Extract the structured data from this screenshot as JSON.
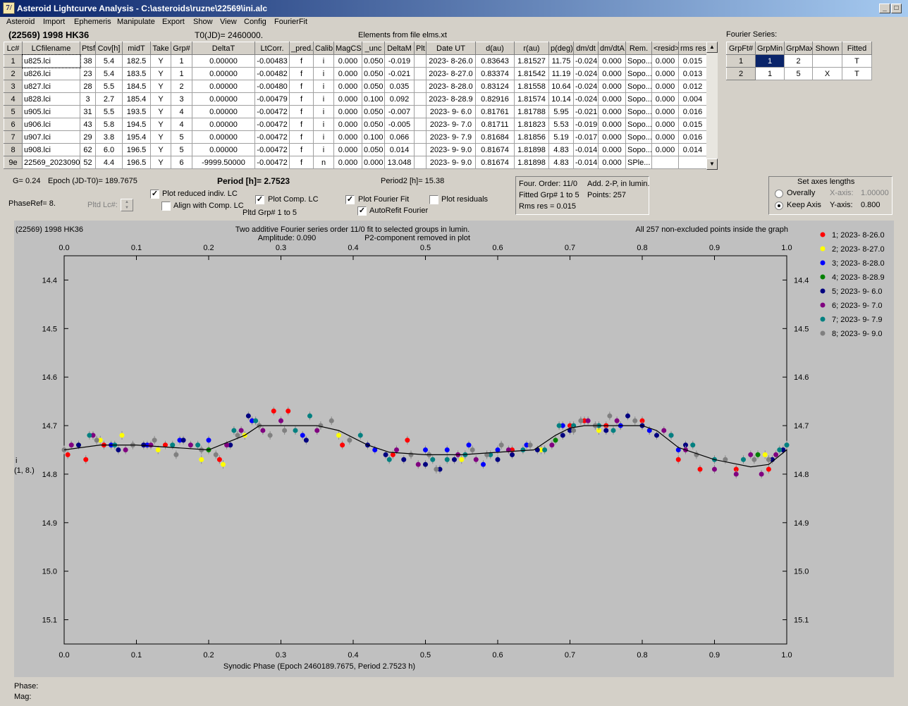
{
  "window": {
    "title": "Asteroid Lightcurve Analysis - C:\\asteroids\\ruzne\\22569\\ini.alc",
    "icon_name": "app-icon",
    "icon_glyph": "7/",
    "minimize": "_",
    "restore": "□",
    "close": "✕"
  },
  "menu": [
    "Asteroid",
    "Import",
    "Ephemeris",
    "Manipulate",
    "Export",
    "Show",
    "View",
    "Config",
    "FourierFit"
  ],
  "header": {
    "asteroid_name": "(22569) 1998 HK36",
    "t0": "T0(JD)= 2460000.",
    "elements": "Elements from file elms.xt"
  },
  "lc_table": {
    "columns": [
      "Lc#",
      "LCfilename",
      "Ptsf",
      "Cov[h]",
      "midT",
      "Take",
      "Grp#",
      "DeltaT",
      "LtCorr.",
      "_pred.",
      "Calib.",
      "MagCS",
      "_unc",
      "DeltaM",
      "Plt",
      "Date UT",
      "d(au)",
      "r(au)",
      "p(deg)",
      "dm/dt",
      "dm/dtA",
      "Rem.",
      "<resid>",
      "rms res"
    ],
    "rows": [
      [
        "1",
        "u825.lci",
        "38",
        "5.4",
        "182.5",
        "Y",
        "1",
        "0.00000",
        "-0.00483",
        "f",
        "i",
        "0.000",
        "0.050",
        "-0.019",
        "",
        "2023- 8-26.0",
        "0.83643",
        "1.81527",
        "11.75",
        "-0.024",
        "0.000",
        "Sopo...",
        "0.000",
        "0.015"
      ],
      [
        "2",
        "u826.lci",
        "23",
        "5.4",
        "183.5",
        "Y",
        "1",
        "0.00000",
        "-0.00482",
        "f",
        "i",
        "0.000",
        "0.050",
        "-0.021",
        "",
        "2023- 8-27.0",
        "0.83374",
        "1.81542",
        "11.19",
        "-0.024",
        "0.000",
        "Sopo...",
        "0.000",
        "0.013"
      ],
      [
        "3",
        "u827.lci",
        "28",
        "5.5",
        "184.5",
        "Y",
        "2",
        "0.00000",
        "-0.00480",
        "f",
        "i",
        "0.000",
        "0.050",
        "0.035",
        "",
        "2023- 8-28.0",
        "0.83124",
        "1.81558",
        "10.64",
        "-0.024",
        "0.000",
        "Sopo...",
        "0.000",
        "0.012"
      ],
      [
        "4",
        "u828.lci",
        "3",
        "2.7",
        "185.4",
        "Y",
        "3",
        "0.00000",
        "-0.00479",
        "f",
        "i",
        "0.000",
        "0.100",
        "0.092",
        "",
        "2023- 8-28.9",
        "0.82916",
        "1.81574",
        "10.14",
        "-0.024",
        "0.000",
        "Sopo...",
        "0.000",
        "0.004"
      ],
      [
        "5",
        "u905.lci",
        "31",
        "5.5",
        "193.5",
        "Y",
        "4",
        "0.00000",
        "-0.00472",
        "f",
        "i",
        "0.000",
        "0.050",
        "-0.007",
        "",
        "2023- 9- 6.0",
        "0.81761",
        "1.81788",
        "5.95",
        "-0.021",
        "0.000",
        "Sopo...",
        "0.000",
        "0.016"
      ],
      [
        "6",
        "u906.lci",
        "43",
        "5.8",
        "194.5",
        "Y",
        "4",
        "0.00000",
        "-0.00472",
        "f",
        "i",
        "0.000",
        "0.050",
        "-0.005",
        "",
        "2023- 9- 7.0",
        "0.81711",
        "1.81823",
        "5.53",
        "-0.019",
        "0.000",
        "Sopo...",
        "0.000",
        "0.015"
      ],
      [
        "7",
        "u907.lci",
        "29",
        "3.8",
        "195.4",
        "Y",
        "5",
        "0.00000",
        "-0.00472",
        "f",
        "i",
        "0.000",
        "0.100",
        "0.066",
        "",
        "2023- 9- 7.9",
        "0.81684",
        "1.81856",
        "5.19",
        "-0.017",
        "0.000",
        "Sopo...",
        "0.000",
        "0.016"
      ],
      [
        "8",
        "u908.lci",
        "62",
        "6.0",
        "196.5",
        "Y",
        "5",
        "0.00000",
        "-0.00472",
        "f",
        "i",
        "0.000",
        "0.050",
        "0.014",
        "",
        "2023- 9- 9.0",
        "0.81674",
        "1.81898",
        "4.83",
        "-0.014",
        "0.000",
        "Sopo...",
        "0.000",
        "0.014"
      ],
      [
        "9e",
        "22569_2023090",
        "52",
        "4.4",
        "196.5",
        "Y",
        "6",
        "-9999.50000",
        "-0.00472",
        "f",
        "n",
        "0.000",
        "0.000",
        "13.048",
        "",
        "2023- 9- 9.0",
        "0.81674",
        "1.81898",
        "4.83",
        "-0.014",
        "0.000",
        "SPle...",
        "",
        ""
      ]
    ]
  },
  "fourier_table": {
    "title": "Fourier Series:",
    "columns": [
      "GrpFt#",
      "GrpMin",
      "GrpMax",
      "Shown",
      "Fitted"
    ],
    "rows": [
      [
        "1",
        "1",
        "2",
        "",
        "T"
      ],
      [
        "2",
        "1",
        "5",
        "X",
        "T"
      ]
    ]
  },
  "controls": {
    "g": "G= 0.24",
    "epoch": "Epoch (JD-T0)= 189.7675",
    "period": "Period [h]= 2.7523",
    "period2": "Period2 [h]= 15.38",
    "phaseref": "PhaseRef= 8.",
    "pltd_lc": "Pltd Lc#:",
    "plot_reduced": "Plot reduced indiv. LC",
    "align_comp": "Align with Comp. LC",
    "plot_comp": "Plot Comp. LC",
    "pltd_grp": "Pltd Grp#  1   to   5",
    "plot_fourier": "Plot Fourier Fit",
    "autorefit": "AutoRefit Fourier",
    "plot_residuals": "Plot residuals",
    "checked": "✓",
    "checks": {
      "plot_reduced": true,
      "align_comp": false,
      "plot_comp": true,
      "plot_fourier": true,
      "autorefit": true,
      "plot_residuals": false
    }
  },
  "fit_info": {
    "order": "Four. Order: 11/0",
    "add": "Add. 2-P, in lumin.",
    "fitted": "Fitted Grp# 1 to 5",
    "points": "Points: 257",
    "rms": "Rms res     = 0.015"
  },
  "axes_panel": {
    "title": "Set axes lengths",
    "overally": "Overally",
    "keep_axis": "Keep Axis",
    "x_label": "X-axis:",
    "x_value": "1.00000",
    "y_label": "Y-axis:",
    "y_value": "0.800",
    "selected": "keep_axis"
  },
  "plot": {
    "name": "(22569) 1998 HK36",
    "line1": "Two additive Fourier series order 11/0 fit to selected groups in lumin.",
    "line2": "Amplitude: 0.090",
    "line3": "P2-component removed in plot",
    "right_note": "All 257 non-excluded points inside the graph",
    "ylabel_1": "i",
    "ylabel_2": "(1, 8.)",
    "xlabel": "Synodic Phase (Epoch 2460189.7675, Period 2.7523 h)"
  },
  "status": {
    "phase": "Phase:",
    "mag": "Mag:"
  },
  "chart_data": {
    "type": "scatter",
    "xlim": [
      0,
      1
    ],
    "ylim": [
      15.15,
      14.35
    ],
    "y_inverted": true,
    "x_ticks": [
      "0.0",
      "0.1",
      "0.2",
      "0.3",
      "0.4",
      "0.5",
      "0.6",
      "0.7",
      "0.8",
      "0.9",
      "1.0"
    ],
    "y_ticks": [
      "14.4",
      "14.5",
      "14.6",
      "14.7",
      "14.8",
      "14.9",
      "15.0",
      "15.1"
    ],
    "x_tick_values": [
      0,
      0.1,
      0.2,
      0.3,
      0.4,
      0.5,
      0.6,
      0.7,
      0.8,
      0.9,
      1.0
    ],
    "y_tick_values": [
      14.4,
      14.5,
      14.6,
      14.7,
      14.8,
      14.9,
      15.0,
      15.1
    ],
    "legend_position": "right",
    "series": [
      {
        "name": "1; 2023- 8-26.0",
        "color": "#ff0000",
        "points": [
          [
            0.005,
            14.76
          ],
          [
            0.03,
            14.77
          ],
          [
            0.055,
            14.74
          ],
          [
            0.14,
            14.74
          ],
          [
            0.215,
            14.77
          ],
          [
            0.26,
            14.69
          ],
          [
            0.29,
            14.67
          ],
          [
            0.31,
            14.67
          ],
          [
            0.385,
            14.74
          ],
          [
            0.455,
            14.76
          ],
          [
            0.475,
            14.73
          ],
          [
            0.62,
            14.75
          ],
          [
            0.7,
            14.7
          ],
          [
            0.72,
            14.69
          ],
          [
            0.75,
            14.7
          ],
          [
            0.8,
            14.69
          ],
          [
            0.85,
            14.77
          ],
          [
            0.88,
            14.79
          ],
          [
            0.93,
            14.79
          ],
          [
            0.975,
            14.79
          ]
        ]
      },
      {
        "name": "2; 2023- 8-27.0",
        "color": "#ffff00",
        "points": [
          [
            0.02,
            14.74
          ],
          [
            0.05,
            14.73
          ],
          [
            0.08,
            14.72
          ],
          [
            0.13,
            14.75
          ],
          [
            0.19,
            14.77
          ],
          [
            0.22,
            14.78
          ],
          [
            0.25,
            14.72
          ],
          [
            0.38,
            14.72
          ],
          [
            0.55,
            14.77
          ],
          [
            0.66,
            14.75
          ],
          [
            0.74,
            14.71
          ],
          [
            0.77,
            14.7
          ],
          [
            0.81,
            14.71
          ],
          [
            0.97,
            14.76
          ]
        ]
      },
      {
        "name": "3; 2023- 8-28.0",
        "color": "#0000ff",
        "points": [
          [
            0.065,
            14.74
          ],
          [
            0.115,
            14.74
          ],
          [
            0.16,
            14.73
          ],
          [
            0.2,
            14.73
          ],
          [
            0.26,
            14.69
          ],
          [
            0.33,
            14.72
          ],
          [
            0.43,
            14.75
          ],
          [
            0.5,
            14.75
          ],
          [
            0.53,
            14.75
          ],
          [
            0.56,
            14.74
          ],
          [
            0.58,
            14.78
          ],
          [
            0.6,
            14.75
          ],
          [
            0.64,
            14.74
          ],
          [
            0.69,
            14.7
          ],
          [
            0.77,
            14.7
          ],
          [
            0.81,
            14.71
          ],
          [
            0.85,
            14.75
          ]
        ]
      },
      {
        "name": "4; 2023- 8-28.9",
        "color": "#008000",
        "points": [
          [
            0.2,
            14.75
          ],
          [
            0.68,
            14.73
          ],
          [
            0.96,
            14.76
          ]
        ]
      },
      {
        "name": "5; 2023- 9- 6.0",
        "color": "#000080",
        "points": [
          [
            0.02,
            14.74
          ],
          [
            0.075,
            14.75
          ],
          [
            0.11,
            14.74
          ],
          [
            0.165,
            14.73
          ],
          [
            0.23,
            14.74
          ],
          [
            0.255,
            14.68
          ],
          [
            0.335,
            14.73
          ],
          [
            0.42,
            14.74
          ],
          [
            0.445,
            14.76
          ],
          [
            0.47,
            14.77
          ],
          [
            0.5,
            14.78
          ],
          [
            0.52,
            14.79
          ],
          [
            0.54,
            14.77
          ],
          [
            0.6,
            14.77
          ],
          [
            0.62,
            14.76
          ],
          [
            0.655,
            14.75
          ],
          [
            0.69,
            14.72
          ],
          [
            0.7,
            14.71
          ],
          [
            0.75,
            14.71
          ],
          [
            0.78,
            14.68
          ],
          [
            0.8,
            14.7
          ],
          [
            0.82,
            14.72
          ],
          [
            0.84,
            14.72
          ],
          [
            0.86,
            14.74
          ],
          [
            0.98,
            14.77
          ],
          [
            0.995,
            14.75
          ]
        ]
      },
      {
        "name": "6; 2023- 9- 7.0",
        "color": "#800080",
        "points": [
          [
            0.01,
            14.74
          ],
          [
            0.04,
            14.72
          ],
          [
            0.085,
            14.75
          ],
          [
            0.12,
            14.74
          ],
          [
            0.175,
            14.74
          ],
          [
            0.225,
            14.74
          ],
          [
            0.245,
            14.71
          ],
          [
            0.275,
            14.71
          ],
          [
            0.3,
            14.69
          ],
          [
            0.35,
            14.71
          ],
          [
            0.46,
            14.75
          ],
          [
            0.49,
            14.78
          ],
          [
            0.545,
            14.76
          ],
          [
            0.57,
            14.77
          ],
          [
            0.615,
            14.75
          ],
          [
            0.675,
            14.74
          ],
          [
            0.725,
            14.69
          ],
          [
            0.765,
            14.69
          ],
          [
            0.83,
            14.71
          ],
          [
            0.86,
            14.75
          ],
          [
            0.9,
            14.79
          ],
          [
            0.93,
            14.8
          ],
          [
            0.95,
            14.76
          ],
          [
            0.965,
            14.8
          ],
          [
            0.985,
            14.76
          ]
        ]
      },
      {
        "name": "7; 2023- 9- 7.9",
        "color": "#008080",
        "points": [
          [
            0.035,
            14.72
          ],
          [
            0.07,
            14.74
          ],
          [
            0.15,
            14.74
          ],
          [
            0.185,
            14.74
          ],
          [
            0.235,
            14.71
          ],
          [
            0.265,
            14.69
          ],
          [
            0.32,
            14.71
          ],
          [
            0.34,
            14.68
          ],
          [
            0.41,
            14.72
          ],
          [
            0.45,
            14.77
          ],
          [
            0.51,
            14.77
          ],
          [
            0.53,
            14.77
          ],
          [
            0.555,
            14.76
          ],
          [
            0.59,
            14.76
          ],
          [
            0.635,
            14.75
          ],
          [
            0.665,
            14.75
          ],
          [
            0.685,
            14.7
          ],
          [
            0.705,
            14.7
          ],
          [
            0.74,
            14.7
          ],
          [
            0.76,
            14.71
          ],
          [
            0.84,
            14.72
          ],
          [
            0.87,
            14.74
          ],
          [
            0.9,
            14.77
          ],
          [
            0.94,
            14.77
          ],
          [
            0.99,
            14.75
          ],
          [
            1.0,
            14.74
          ]
        ]
      },
      {
        "name": "8; 2023- 9- 9.0",
        "color": "#808080",
        "points": [
          [
            0.0,
            14.75
          ],
          [
            0.045,
            14.73
          ],
          [
            0.095,
            14.74
          ],
          [
            0.125,
            14.73
          ],
          [
            0.155,
            14.76
          ],
          [
            0.19,
            14.75
          ],
          [
            0.21,
            14.76
          ],
          [
            0.24,
            14.72
          ],
          [
            0.27,
            14.7
          ],
          [
            0.285,
            14.72
          ],
          [
            0.305,
            14.71
          ],
          [
            0.355,
            14.7
          ],
          [
            0.37,
            14.69
          ],
          [
            0.395,
            14.73
          ],
          [
            0.48,
            14.76
          ],
          [
            0.505,
            14.76
          ],
          [
            0.515,
            14.79
          ],
          [
            0.565,
            14.75
          ],
          [
            0.585,
            14.76
          ],
          [
            0.605,
            14.74
          ],
          [
            0.645,
            14.74
          ],
          [
            0.705,
            14.71
          ],
          [
            0.715,
            14.69
          ],
          [
            0.735,
            14.7
          ],
          [
            0.755,
            14.68
          ],
          [
            0.79,
            14.69
          ],
          [
            0.875,
            14.76
          ],
          [
            0.915,
            14.77
          ],
          [
            0.955,
            14.77
          ],
          [
            0.975,
            14.77
          ]
        ]
      }
    ],
    "fit_curve": {
      "color": "#000000",
      "x": [
        0,
        0.05,
        0.1,
        0.15,
        0.2,
        0.25,
        0.27,
        0.3,
        0.35,
        0.38,
        0.42,
        0.45,
        0.5,
        0.55,
        0.6,
        0.65,
        0.68,
        0.7,
        0.72,
        0.75,
        0.8,
        0.82,
        0.85,
        0.9,
        0.95,
        0.975,
        1.0
      ],
      "y": [
        14.75,
        14.74,
        14.74,
        14.745,
        14.75,
        14.72,
        14.7,
        14.7,
        14.7,
        14.71,
        14.74,
        14.755,
        14.76,
        14.76,
        14.755,
        14.75,
        14.72,
        14.705,
        14.7,
        14.7,
        14.7,
        14.71,
        14.745,
        14.77,
        14.785,
        14.78,
        14.75
      ]
    }
  }
}
